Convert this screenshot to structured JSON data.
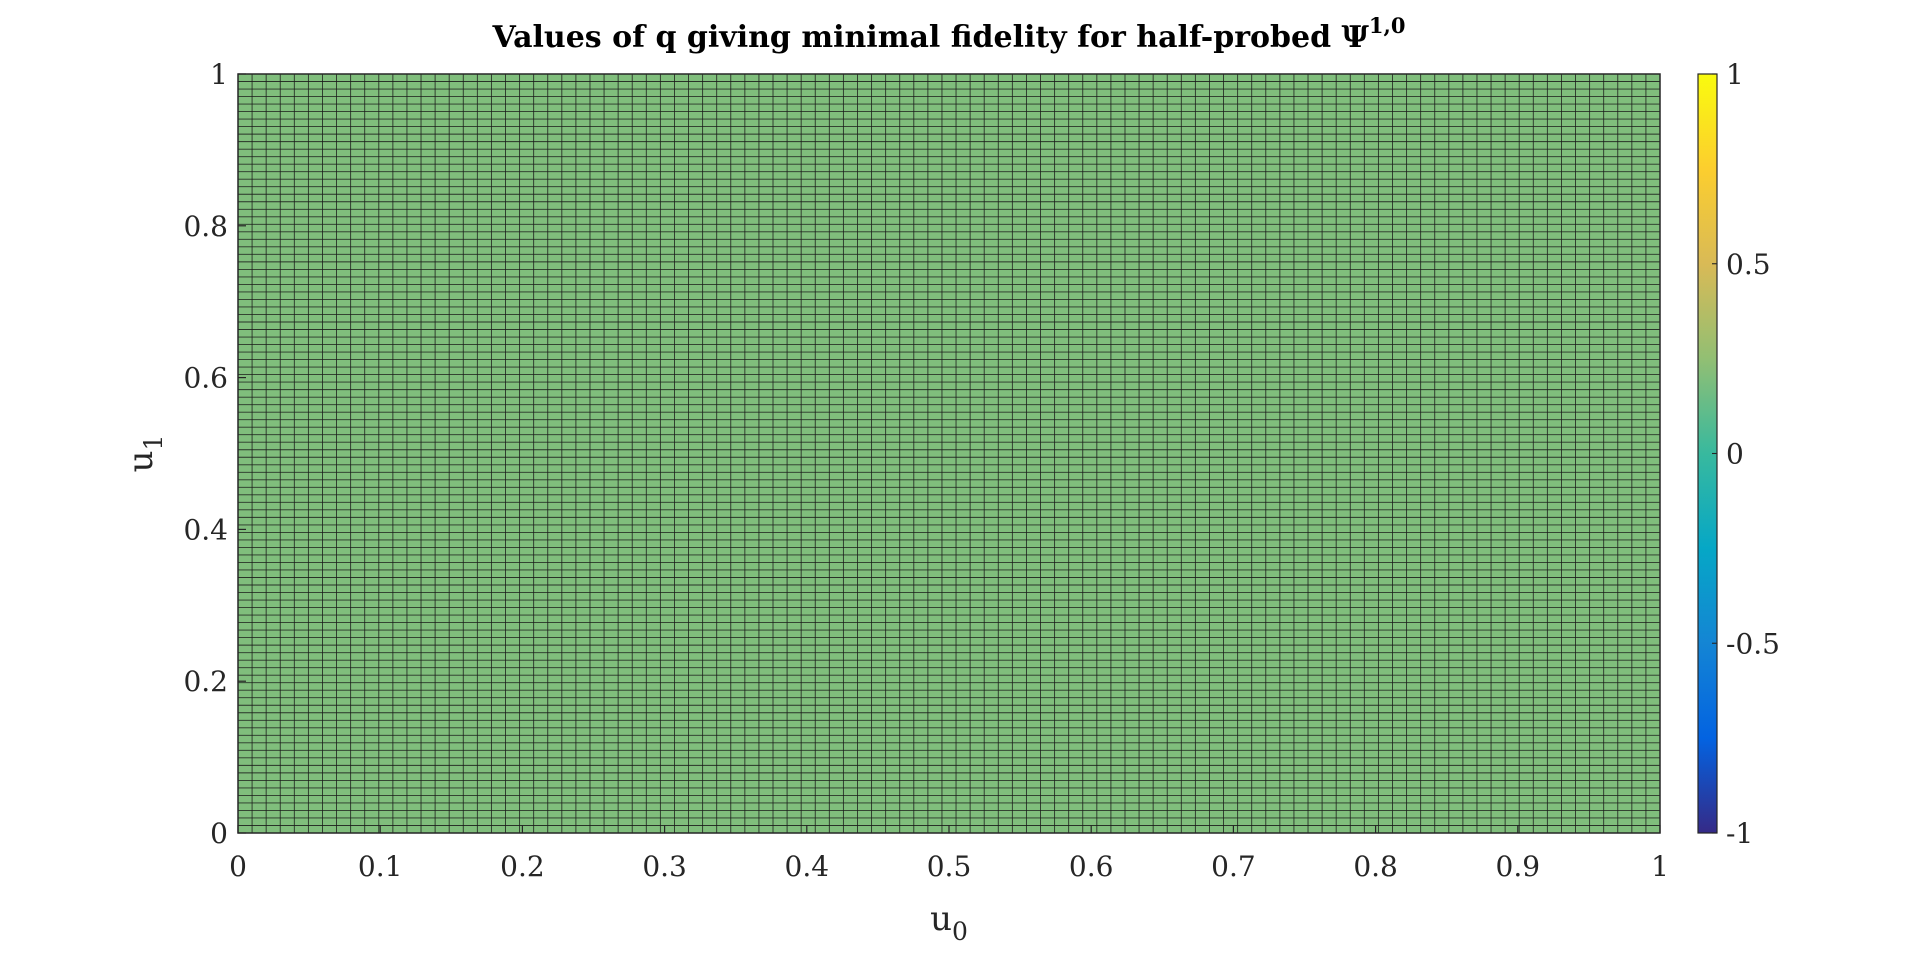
{
  "chart_data": {
    "type": "heatmap",
    "title": {
      "main": "Values of q giving minimal fidelity for half-probed Ψ",
      "superscript": "1,0"
    },
    "xlabel": {
      "base": "u",
      "subscript": "0"
    },
    "ylabel": {
      "base": "u",
      "subscript": "1"
    },
    "xlim": [
      0,
      1
    ],
    "ylim": [
      0,
      1
    ],
    "x_ticks": [
      0,
      0.1,
      0.2,
      0.3,
      0.4,
      0.5,
      0.6,
      0.7,
      0.8,
      0.9,
      1
    ],
    "x_tick_labels": [
      "0",
      "0.1",
      "0.2",
      "0.3",
      "0.4",
      "0.5",
      "0.6",
      "0.7",
      "0.8",
      "0.9",
      "1"
    ],
    "y_ticks": [
      0,
      0.2,
      0.4,
      0.6,
      0.8,
      1
    ],
    "y_tick_labels": [
      "0",
      "0.2",
      "0.4",
      "0.6",
      "0.8",
      "1"
    ],
    "grid_resolution": {
      "nx": 101,
      "ny": 101
    },
    "cell_value": 0.2,
    "grid_line_color": "#1a1a1a",
    "colorbar": {
      "range": [
        -1,
        1
      ],
      "ticks": [
        -1,
        -0.5,
        0,
        0.5,
        1
      ],
      "tick_labels": [
        "-1",
        "-0.5",
        "0",
        "0.5",
        "1"
      ],
      "colormap": "parula",
      "colormap_stops": [
        {
          "v": 0.0,
          "color": "#352a87"
        },
        {
          "v": 0.125,
          "color": "#0363e1"
        },
        {
          "v": 0.25,
          "color": "#1485d4"
        },
        {
          "v": 0.375,
          "color": "#06a7c6"
        },
        {
          "v": 0.5,
          "color": "#38b99e"
        },
        {
          "v": 0.625,
          "color": "#92bf73"
        },
        {
          "v": 0.75,
          "color": "#d9ba56"
        },
        {
          "v": 0.875,
          "color": "#fcce2e"
        },
        {
          "v": 1.0,
          "color": "#f9fb0e"
        }
      ]
    }
  }
}
